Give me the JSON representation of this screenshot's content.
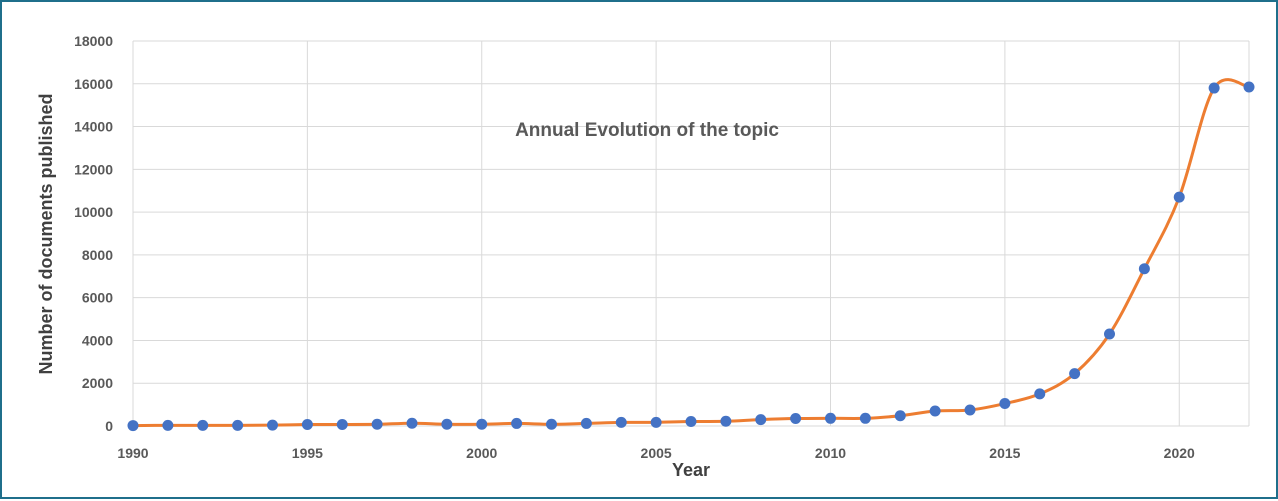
{
  "chart_data": {
    "type": "line",
    "title": "Annual Evolution of the topic",
    "xlabel": "Year",
    "ylabel": "Number of documents published",
    "xlim": [
      1990,
      2022
    ],
    "ylim": [
      0,
      18000
    ],
    "x_ticks": [
      1990,
      1995,
      2000,
      2005,
      2010,
      2015,
      2020
    ],
    "y_ticks": [
      0,
      2000,
      4000,
      6000,
      8000,
      10000,
      12000,
      14000,
      16000,
      18000
    ],
    "grid": true,
    "legend": "none",
    "line_color": "#ed7d31",
    "marker_color": "#4472c4",
    "series": [
      {
        "x": [
          1990,
          1991,
          1992,
          1993,
          1994,
          1995,
          1996,
          1997,
          1998,
          1999,
          2000,
          2001,
          2002,
          2003,
          2004,
          2005,
          2006,
          2007,
          2008,
          2009,
          2010,
          2011,
          2012,
          2013,
          2014,
          2015,
          2016,
          2017,
          2018,
          2019,
          2020,
          2021,
          2022
        ],
        "values": [
          20,
          30,
          30,
          30,
          40,
          70,
          70,
          80,
          130,
          80,
          80,
          120,
          80,
          120,
          170,
          170,
          210,
          220,
          300,
          350,
          360,
          360,
          480,
          700,
          750,
          1050,
          1500,
          2450,
          4300,
          7350,
          10700,
          15800,
          15850
        ]
      }
    ]
  }
}
